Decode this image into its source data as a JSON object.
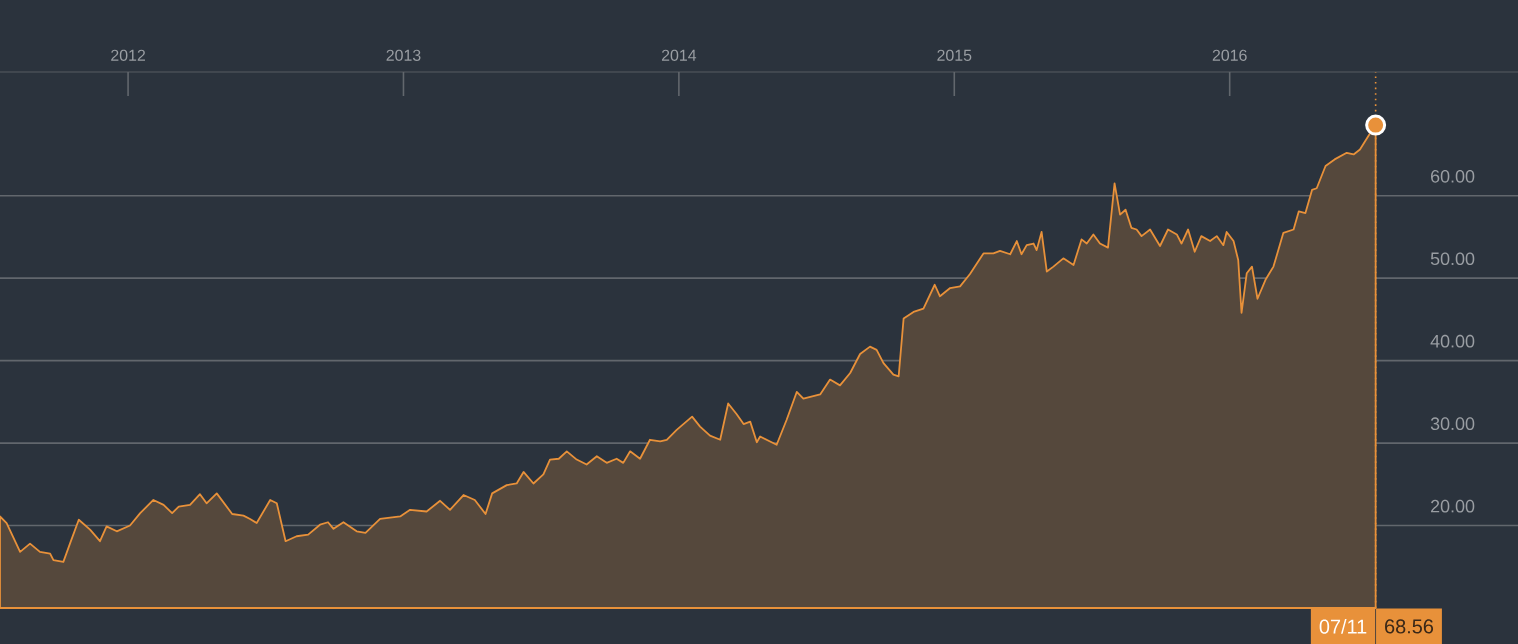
{
  "chart_data": {
    "type": "area",
    "x": [
      2011.535,
      2011.559,
      2011.608,
      2011.644,
      2011.68,
      2011.717,
      2011.729,
      2011.765,
      2011.789,
      2011.821,
      2011.862,
      2011.898,
      2011.922,
      2011.959,
      2012.007,
      2012.044,
      2012.092,
      2012.129,
      2012.16,
      2012.184,
      2012.225,
      2012.261,
      2012.285,
      2012.322,
      2012.378,
      2012.419,
      2012.443,
      2012.467,
      2012.516,
      2012.54,
      2012.572,
      2012.612,
      2012.654,
      2012.697,
      2012.726,
      2012.746,
      2012.782,
      2012.83,
      2012.862,
      2012.915,
      2012.988,
      2013.024,
      2013.084,
      2013.133,
      2013.169,
      2013.218,
      2013.259,
      2013.298,
      2013.322,
      2013.375,
      2013.411,
      2013.436,
      2013.472,
      2013.508,
      2013.532,
      2013.564,
      2013.593,
      2013.629,
      2013.665,
      2013.702,
      2013.738,
      2013.774,
      2013.798,
      2013.823,
      2013.859,
      2013.895,
      2013.932,
      2013.956,
      2013.992,
      2014.048,
      2014.077,
      2014.113,
      2014.15,
      2014.179,
      2014.21,
      2014.235,
      2014.259,
      2014.283,
      2014.295,
      2014.355,
      2014.391,
      2014.428,
      2014.452,
      2014.513,
      2014.549,
      2014.585,
      2014.622,
      2014.658,
      2014.694,
      2014.718,
      2014.743,
      2014.779,
      2014.798,
      2014.816,
      2014.852,
      2014.888,
      2014.929,
      2014.948,
      2014.985,
      2015.021,
      2015.057,
      2015.106,
      2015.142,
      2015.166,
      2015.203,
      2015.227,
      2015.244,
      2015.263,
      2015.288,
      2015.299,
      2015.317,
      2015.336,
      2015.36,
      2015.396,
      2015.433,
      2015.462,
      2015.481,
      2015.505,
      2015.529,
      2015.558,
      2015.582,
      2015.602,
      2015.622,
      2015.643,
      2015.662,
      2015.68,
      2015.711,
      2015.747,
      2015.776,
      2015.808,
      2015.825,
      2015.849,
      2015.873,
      2015.897,
      2015.929,
      2015.953,
      2015.977,
      2015.989,
      2016.014,
      2016.031,
      2016.043,
      2016.062,
      2016.081,
      2016.101,
      2016.13,
      2016.159,
      2016.195,
      2016.232,
      2016.251,
      2016.275,
      2016.299,
      2016.316,
      2016.348,
      2016.381,
      2016.425,
      2016.45,
      2016.473,
      2016.503,
      2016.53
    ],
    "series": [
      {
        "color": "#e8913a",
        "marker": "none",
        "values": [
          21.1,
          20.3,
          16.8,
          17.8,
          16.8,
          16.6,
          15.8,
          15.6,
          17.8,
          20.7,
          19.5,
          18.1,
          19.9,
          19.3,
          20.0,
          21.5,
          23.1,
          22.5,
          21.5,
          22.3,
          22.5,
          23.8,
          22.7,
          23.9,
          21.4,
          21.2,
          20.8,
          20.3,
          23.1,
          22.7,
          18.1,
          18.7,
          18.9,
          20.1,
          20.4,
          19.6,
          20.4,
          19.3,
          19.1,
          20.8,
          21.1,
          21.9,
          21.7,
          23.0,
          21.9,
          23.7,
          23.1,
          21.4,
          23.9,
          24.9,
          25.1,
          26.5,
          25.1,
          26.2,
          28.0,
          28.1,
          29.0,
          28.0,
          27.4,
          28.4,
          27.6,
          28.1,
          27.6,
          29.0,
          28.1,
          30.4,
          30.2,
          30.4,
          31.6,
          33.2,
          32.0,
          30.9,
          30.4,
          34.8,
          33.5,
          32.3,
          32.6,
          30.1,
          30.8,
          29.8,
          32.8,
          36.2,
          35.4,
          35.9,
          37.7,
          37.0,
          38.5,
          40.8,
          41.7,
          41.3,
          39.7,
          38.3,
          38.1,
          45.1,
          45.9,
          46.3,
          49.2,
          47.8,
          48.8,
          49.0,
          50.5,
          53.0,
          53.0,
          53.3,
          52.9,
          54.5,
          52.9,
          54.0,
          54.2,
          53.4,
          55.6,
          50.8,
          51.4,
          52.4,
          51.6,
          54.7,
          54.2,
          55.3,
          54.2,
          53.7,
          61.5,
          57.7,
          58.3,
          56.1,
          55.9,
          55.1,
          55.9,
          53.9,
          55.9,
          55.3,
          54.2,
          55.9,
          53.2,
          55.1,
          54.5,
          55.1,
          54.0,
          55.6,
          54.5,
          52.2,
          45.8,
          50.6,
          51.4,
          47.5,
          49.8,
          51.4,
          55.5,
          55.9,
          58.1,
          57.9,
          60.7,
          60.9,
          63.6,
          64.4,
          65.2,
          65.0,
          65.6,
          67.2,
          68.56
        ]
      },
      {
        "type": "scatter",
        "color": "#e8913a",
        "x": [
          2016.53
        ],
        "values": [
          68.56
        ]
      }
    ],
    "marker": "circle",
    "xlim": [
      2011.535,
      2017.047
    ],
    "xticks": [
      2012,
      2013,
      2014,
      2015,
      2016
    ],
    "ylim": [
      10,
      75
    ],
    "yticks": [
      {
        "value": 20,
        "label": "20.00"
      },
      {
        "value": 30,
        "label": "30.00"
      },
      {
        "value": 40,
        "label": "40.00"
      },
      {
        "value": 50,
        "label": "50.00"
      },
      {
        "value": 60,
        "label": "60.00"
      }
    ],
    "grid": "y",
    "ref_lines": [
      {
        "axis": "x",
        "value": 2016.53,
        "color": "#e8913a",
        "line_style": "dotted"
      }
    ],
    "annotations": [
      "07/11",
      "68.56"
    ]
  }
}
